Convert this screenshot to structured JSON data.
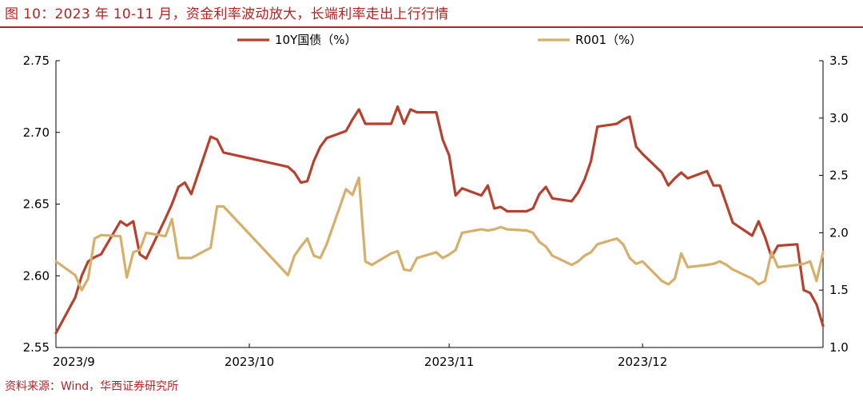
{
  "title": "图 10：2023 年 10-11 月，资金利率波动放大，长端利率走出上行行情",
  "source": "资料来源：Wind，华西证券研究所",
  "chart_data": {
    "type": "line",
    "x_tick_labels": [
      "2023/9",
      "2023/10",
      "2023/11",
      "2023/12"
    ],
    "y_left": {
      "ylim": [
        2.55,
        2.75
      ],
      "ticks": [
        "2.55",
        "2.60",
        "2.65",
        "2.70",
        "2.75"
      ]
    },
    "y_right": {
      "ylim": [
        1.0,
        3.5
      ],
      "ticks": [
        "1.0",
        "1.5",
        "2.0",
        "2.5",
        "3.0",
        "3.5"
      ]
    },
    "legend_position": "top-center",
    "series": [
      {
        "name": "10Y国债（%）",
        "axis": "left",
        "color": "#b5412f",
        "x": [
          "2023-09-01",
          "2023-09-04",
          "2023-09-05",
          "2023-09-06",
          "2023-09-07",
          "2023-09-08",
          "2023-09-11",
          "2023-09-12",
          "2023-09-13",
          "2023-09-14",
          "2023-09-15",
          "2023-09-18",
          "2023-09-19",
          "2023-09-20",
          "2023-09-21",
          "2023-09-22",
          "2023-09-25",
          "2023-09-26",
          "2023-09-27",
          "2023-10-07",
          "2023-10-08",
          "2023-10-09",
          "2023-10-10",
          "2023-10-11",
          "2023-10-12",
          "2023-10-13",
          "2023-10-16",
          "2023-10-17",
          "2023-10-18",
          "2023-10-19",
          "2023-10-20",
          "2023-10-23",
          "2023-10-24",
          "2023-10-25",
          "2023-10-26",
          "2023-10-27",
          "2023-10-30",
          "2023-10-31",
          "2023-11-01",
          "2023-11-02",
          "2023-11-03",
          "2023-11-06",
          "2023-11-07",
          "2023-11-08",
          "2023-11-09",
          "2023-11-10",
          "2023-11-13",
          "2023-11-14",
          "2023-11-15",
          "2023-11-16",
          "2023-11-17",
          "2023-11-20",
          "2023-11-21",
          "2023-11-22",
          "2023-11-23",
          "2023-11-24",
          "2023-11-27",
          "2023-11-28",
          "2023-11-29",
          "2023-11-30",
          "2023-12-01",
          "2023-12-04",
          "2023-12-05",
          "2023-12-06",
          "2023-12-07",
          "2023-12-08",
          "2023-12-11",
          "2023-12-12",
          "2023-12-13",
          "2023-12-14",
          "2023-12-15",
          "2023-12-18",
          "2023-12-19",
          "2023-12-20",
          "2023-12-21",
          "2023-12-22",
          "2023-12-25",
          "2023-12-26",
          "2023-12-27",
          "2023-12-28",
          "2023-12-29"
        ],
        "values": [
          2.56,
          2.585,
          2.6,
          2.61,
          2.613,
          2.615,
          2.638,
          2.635,
          2.638,
          2.615,
          2.612,
          2.64,
          2.65,
          2.662,
          2.665,
          2.657,
          2.697,
          2.695,
          2.686,
          2.676,
          2.672,
          2.665,
          2.666,
          2.68,
          2.69,
          2.696,
          2.701,
          2.709,
          2.716,
          2.706,
          2.706,
          2.706,
          2.718,
          2.706,
          2.716,
          2.714,
          2.714,
          2.695,
          2.684,
          2.656,
          2.661,
          2.656,
          2.663,
          2.647,
          2.648,
          2.645,
          2.645,
          2.647,
          2.657,
          2.662,
          2.654,
          2.652,
          2.658,
          2.667,
          2.68,
          2.704,
          2.706,
          2.709,
          2.711,
          2.69,
          2.685,
          2.672,
          2.663,
          2.668,
          2.672,
          2.668,
          2.673,
          2.663,
          2.663,
          2.65,
          2.637,
          2.628,
          2.638,
          2.627,
          2.613,
          2.621,
          2.622,
          2.59,
          2.588,
          2.58,
          2.565
        ]
      },
      {
        "name": "R001（%）",
        "axis": "right",
        "color": "#d4b06a",
        "x": [
          "2023-09-01",
          "2023-09-04",
          "2023-09-05",
          "2023-09-06",
          "2023-09-07",
          "2023-09-08",
          "2023-09-11",
          "2023-09-12",
          "2023-09-13",
          "2023-09-14",
          "2023-09-15",
          "2023-09-18",
          "2023-09-19",
          "2023-09-20",
          "2023-09-21",
          "2023-09-22",
          "2023-09-25",
          "2023-09-26",
          "2023-09-27",
          "2023-10-07",
          "2023-10-08",
          "2023-10-09",
          "2023-10-10",
          "2023-10-11",
          "2023-10-12",
          "2023-10-13",
          "2023-10-16",
          "2023-10-17",
          "2023-10-18",
          "2023-10-19",
          "2023-10-20",
          "2023-10-23",
          "2023-10-24",
          "2023-10-25",
          "2023-10-26",
          "2023-10-27",
          "2023-10-30",
          "2023-10-31",
          "2023-11-01",
          "2023-11-02",
          "2023-11-03",
          "2023-11-06",
          "2023-11-07",
          "2023-11-08",
          "2023-11-09",
          "2023-11-10",
          "2023-11-13",
          "2023-11-14",
          "2023-11-15",
          "2023-11-16",
          "2023-11-17",
          "2023-11-20",
          "2023-11-21",
          "2023-11-22",
          "2023-11-23",
          "2023-11-24",
          "2023-11-27",
          "2023-11-28",
          "2023-11-29",
          "2023-11-30",
          "2023-12-01",
          "2023-12-04",
          "2023-12-05",
          "2023-12-06",
          "2023-12-07",
          "2023-12-08",
          "2023-12-11",
          "2023-12-12",
          "2023-12-13",
          "2023-12-14",
          "2023-12-15",
          "2023-12-18",
          "2023-12-19",
          "2023-12-20",
          "2023-12-21",
          "2023-12-22",
          "2023-12-25",
          "2023-12-26",
          "2023-12-27",
          "2023-12-28",
          "2023-12-29"
        ],
        "values": [
          1.75,
          1.63,
          1.5,
          1.6,
          1.95,
          1.98,
          1.97,
          1.61,
          1.83,
          1.85,
          2.0,
          1.97,
          2.12,
          1.78,
          1.78,
          1.78,
          1.87,
          2.23,
          2.23,
          1.63,
          1.8,
          1.88,
          1.95,
          1.8,
          1.78,
          1.9,
          2.38,
          2.33,
          2.48,
          1.75,
          1.72,
          1.82,
          1.84,
          1.68,
          1.67,
          1.78,
          1.83,
          1.78,
          1.81,
          1.85,
          2.0,
          2.03,
          2.02,
          2.03,
          2.05,
          2.03,
          2.02,
          2.0,
          1.92,
          1.88,
          1.8,
          1.72,
          1.75,
          1.8,
          1.83,
          1.9,
          1.95,
          1.9,
          1.78,
          1.73,
          1.75,
          1.58,
          1.55,
          1.6,
          1.82,
          1.7,
          1.72,
          1.73,
          1.75,
          1.72,
          1.68,
          1.6,
          1.55,
          1.58,
          1.83,
          1.7,
          1.72,
          1.73,
          1.75,
          1.58,
          1.83
        ]
      }
    ]
  }
}
